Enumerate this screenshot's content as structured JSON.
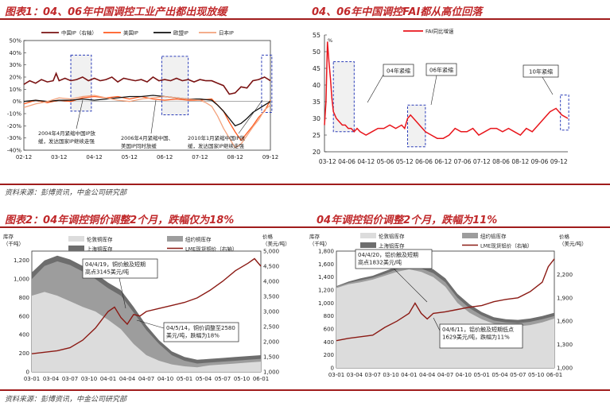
{
  "titles": {
    "fig1": "图表1：04、06年中国调控工业产出都出现放缓",
    "fig_fai": "04、06年中国调控FAI都从高位回落",
    "fig2": "图表2：04年调控铜价调整2个月，跌幅仅为18%",
    "fig_al": "04年调控铝价调整2个月，跌幅为11%"
  },
  "sources": {
    "top": "资料来源：彭博资讯，中金公司研究部",
    "bottom": "资料来源：彭博资讯，中金公司研究部"
  },
  "chart_data": [
    {
      "type": "line",
      "legend": [
        "中国IP（右轴）",
        "美国IP",
        "欧盟IP",
        "日本IP"
      ],
      "colors": [
        "#7a1313",
        "#ff5a1f",
        "#111111",
        "#f3a27c"
      ],
      "yticks": [
        "50%",
        "40%",
        "30%",
        "20%",
        "10%",
        "0%",
        "-10%",
        "-20%",
        "-30%",
        "-40%"
      ],
      "xticks": [
        "02-12",
        "03-12",
        "04-12",
        "05-12",
        "06-12",
        "07-12",
        "08-12",
        "09-12"
      ],
      "ylim": [
        -40,
        50
      ],
      "annotations": [
        "2004年4月紧缩中国IP放缓，发达国家IP继续走强",
        "2006年4月紧缩中国、美国IP同时放缓",
        "2010年1月紧缩中国IP放缓，发达国家IP继续走强"
      ],
      "series": [
        {
          "name": "中国IP（右轴）",
          "x": [
            0,
            2,
            4,
            6,
            8,
            10,
            11,
            12,
            14,
            16,
            18,
            20,
            22,
            24,
            26,
            28,
            30,
            32,
            34,
            36,
            38,
            40,
            42,
            44,
            46,
            48,
            50,
            52,
            54,
            56,
            58,
            60,
            62,
            64,
            66,
            68,
            70,
            72,
            74,
            76,
            78,
            80,
            82,
            84
          ],
          "values": [
            14,
            17,
            15,
            18,
            16,
            17,
            23,
            17,
            19,
            17,
            18,
            20,
            17,
            19,
            17,
            18,
            20,
            16,
            19,
            18,
            17,
            18,
            16,
            20,
            17,
            18,
            17,
            19,
            17,
            18,
            16,
            18,
            17,
            17,
            15,
            13,
            6,
            7,
            12,
            11,
            17,
            18,
            20,
            17
          ]
        },
        {
          "name": "美国IP",
          "x": [
            0,
            4,
            8,
            12,
            16,
            20,
            24,
            28,
            32,
            36,
            40,
            44,
            48,
            52,
            56,
            60,
            64,
            68,
            70,
            72,
            74,
            76,
            78,
            80,
            82,
            84
          ],
          "values": [
            -2,
            1,
            -1,
            1,
            0,
            3,
            4,
            3,
            4,
            2,
            4,
            2,
            1,
            2,
            1,
            1,
            2,
            -8,
            -17,
            -25,
            -32,
            -26,
            -20,
            -13,
            -8,
            1
          ]
        },
        {
          "name": "欧盟IP",
          "x": [
            0,
            4,
            8,
            12,
            16,
            20,
            24,
            28,
            32,
            36,
            40,
            44,
            48,
            52,
            56,
            60,
            64,
            66,
            68,
            70,
            72,
            74,
            76,
            78,
            80,
            82,
            84
          ],
          "values": [
            0,
            1,
            0,
            1,
            1,
            2,
            1,
            2,
            3,
            4,
            4,
            5,
            4,
            3,
            2,
            2,
            1,
            -3,
            -8,
            -14,
            -20,
            -18,
            -14,
            -9,
            -6,
            -3,
            0
          ]
        },
        {
          "name": "日本IP",
          "x": [
            0,
            4,
            8,
            12,
            16,
            20,
            24,
            28,
            32,
            36,
            40,
            44,
            48,
            52,
            56,
            60,
            62,
            64,
            66,
            68,
            70,
            72,
            74,
            76,
            78,
            80,
            82,
            84
          ],
          "values": [
            -5,
            -2,
            0,
            3,
            2,
            4,
            5,
            3,
            1,
            0,
            2,
            3,
            4,
            3,
            2,
            1,
            -1,
            -4,
            -12,
            -22,
            -30,
            -38,
            -35,
            -28,
            -21,
            -15,
            -7,
            -3
          ]
        }
      ]
    },
    {
      "type": "line",
      "legend": [
        "FAI同比增速"
      ],
      "unit": "%",
      "yticks": [
        "55",
        "50",
        "45",
        "40",
        "35",
        "30",
        "25",
        "20"
      ],
      "xticks": [
        "03-12",
        "04-06",
        "04-12",
        "05-06",
        "05-12",
        "06-06",
        "06-12",
        "07-06",
        "07-12",
        "08-06",
        "08-12",
        "09-06",
        "09-12"
      ],
      "ylim": [
        20,
        55
      ],
      "annotations": [
        "04年紧缩",
        "06年紧缩",
        "10年紧缩"
      ],
      "series": [
        {
          "name": "FAI同比增速",
          "x": [
            0,
            0.5,
            1,
            1.5,
            2,
            2.5,
            3,
            4,
            5,
            6,
            7,
            8,
            9,
            10,
            11,
            12,
            14,
            16,
            18,
            20,
            22,
            24,
            26,
            27,
            28,
            29,
            30,
            32,
            34,
            36,
            38,
            40,
            42,
            44,
            46,
            48,
            50,
            52,
            54,
            56,
            58,
            60,
            62,
            64,
            66,
            68,
            70,
            72,
            74,
            76,
            78,
            80,
            82
          ],
          "values": [
            28,
            35,
            53,
            47,
            42,
            36,
            32,
            30,
            29,
            28,
            28,
            27,
            27,
            26,
            27,
            26,
            25,
            26,
            27,
            27,
            28,
            27,
            28,
            27,
            30,
            31,
            30,
            28,
            26,
            25,
            24,
            24,
            25,
            27,
            26,
            26,
            27,
            25,
            26,
            27,
            27,
            26,
            27,
            26,
            25,
            27,
            26,
            28,
            30,
            32,
            33,
            31,
            30
          ]
        }
      ]
    },
    {
      "type": "area",
      "legend": [
        "伦敦铜库存",
        "纽约铜库存",
        "上海铜库存",
        "LME现货铜价（右轴）"
      ],
      "left_unit": "库存（千吨）",
      "right_unit": "价格（美元/吨）",
      "yticks_left": [
        "1,200",
        "1,000",
        "800",
        "600",
        "400",
        "200",
        "0"
      ],
      "yticks_right": [
        "5,000",
        "4,500",
        "4,000",
        "3,500",
        "3,000",
        "2,500",
        "2,000",
        "1,500",
        "1,000"
      ],
      "xticks": [
        "03-01",
        "03-04",
        "03-07",
        "03-10",
        "04-01",
        "04-04",
        "04-07",
        "04-10",
        "05-01",
        "05-04",
        "05-07",
        "05-10",
        "06-01"
      ],
      "ylim_left": [
        0,
        1300
      ],
      "ylim_right": [
        1000,
        5000
      ],
      "annotations": [
        "04/4/19，铜价触及短期高点3145美元/吨",
        "04/5/14，铜价调整至2580美元/吨，跌幅为18%"
      ],
      "series": [
        {
          "name": "伦敦铜库存",
          "x": [
            0,
            4,
            8,
            12,
            16,
            20,
            24,
            28,
            32,
            36,
            40,
            44,
            48,
            52,
            56,
            60,
            64,
            68,
            72
          ],
          "values": [
            820,
            860,
            820,
            760,
            700,
            650,
            560,
            460,
            300,
            180,
            120,
            80,
            60,
            50,
            70,
            80,
            90,
            100,
            110
          ]
        },
        {
          "name": "纽约铜库存",
          "x": [
            0,
            4,
            8,
            12,
            16,
            20,
            24,
            28,
            32,
            36,
            40,
            44,
            48,
            52,
            56,
            60,
            64,
            68,
            72
          ],
          "values": [
            1000,
            1140,
            1190,
            1150,
            1080,
            1000,
            900,
            820,
            640,
            450,
            300,
            180,
            120,
            90,
            100,
            110,
            120,
            130,
            140
          ]
        },
        {
          "name": "上海铜库存",
          "x": [
            0,
            4,
            8,
            12,
            16,
            20,
            24,
            28,
            32,
            36,
            40,
            44,
            48,
            52,
            56,
            60,
            64,
            68,
            72
          ],
          "values": [
            1070,
            1200,
            1250,
            1210,
            1140,
            1060,
            960,
            880,
            700,
            500,
            340,
            220,
            160,
            130,
            140,
            150,
            160,
            170,
            180
          ]
        },
        {
          "name": "LME现货铜价（右轴）",
          "x": [
            0,
            4,
            8,
            12,
            16,
            20,
            24,
            26,
            28,
            30,
            32,
            34,
            36,
            40,
            44,
            48,
            52,
            56,
            60,
            64,
            68,
            70,
            72
          ],
          "values": [
            1600,
            1650,
            1700,
            1800,
            2050,
            2450,
            3000,
            3145,
            2800,
            2580,
            2900,
            2850,
            3000,
            3100,
            3200,
            3300,
            3450,
            3700,
            4000,
            4350,
            4600,
            4750,
            4500
          ]
        }
      ]
    },
    {
      "type": "area",
      "legend": [
        "伦敦铝库存",
        "纽约铝库存",
        "上海铝库存",
        "LME现货铝价（右轴）"
      ],
      "left_unit": "库存（千吨）",
      "right_unit": "价格（美元/吨）",
      "yticks_left": [
        "1,800",
        "1,600",
        "1,400",
        "1,200",
        "1,000",
        "800",
        "600",
        "400",
        "200",
        "0"
      ],
      "yticks_right": [
        "2,200",
        "1,900",
        "1,600",
        "1,300",
        "1,000"
      ],
      "xticks": [
        "03-01",
        "03-04",
        "03-07",
        "03-10",
        "04-01",
        "04-04",
        "04-07",
        "04-10",
        "05-01",
        "05-04",
        "05-07",
        "05-10",
        "06-01"
      ],
      "ylim_left": [
        0,
        1800
      ],
      "ylim_right": [
        1000,
        2500
      ],
      "annotations": [
        "04/4/20，铝价触及短期高点1832美元/吨",
        "04/6/11，铝价调整至短期低点1629美元/吨，跌幅为11%"
      ],
      "series": [
        {
          "name": "伦敦铝库存",
          "x": [
            0,
            4,
            8,
            12,
            16,
            20,
            24,
            28,
            32,
            36,
            40,
            44,
            48,
            52,
            56,
            60,
            64,
            68,
            72
          ],
          "values": [
            1230,
            1290,
            1320,
            1360,
            1420,
            1480,
            1520,
            1480,
            1400,
            1250,
            1000,
            850,
            750,
            680,
            650,
            640,
            660,
            700,
            760
          ]
        },
        {
          "name": "纽约铝库存",
          "x": [
            0,
            4,
            8,
            12,
            16,
            20,
            24,
            28,
            32,
            36,
            40,
            44,
            48,
            52,
            56,
            60,
            64,
            68,
            72
          ],
          "values": [
            1250,
            1310,
            1350,
            1390,
            1450,
            1520,
            1560,
            1530,
            1460,
            1320,
            1080,
            920,
            810,
            730,
            700,
            690,
            710,
            750,
            800
          ]
        },
        {
          "name": "上海铝库存",
          "x": [
            0,
            4,
            8,
            12,
            16,
            20,
            24,
            28,
            32,
            36,
            40,
            44,
            48,
            52,
            56,
            60,
            64,
            68,
            72
          ],
          "values": [
            1260,
            1330,
            1380,
            1420,
            1490,
            1560,
            1600,
            1580,
            1520,
            1380,
            1140,
            980,
            860,
            780,
            750,
            740,
            760,
            800,
            850
          ]
        },
        {
          "name": "LME现货铝价（右轴）",
          "x": [
            0,
            4,
            8,
            12,
            16,
            20,
            24,
            26,
            28,
            30,
            32,
            36,
            40,
            44,
            48,
            52,
            56,
            60,
            64,
            68,
            70,
            72
          ],
          "values": [
            1350,
            1380,
            1400,
            1420,
            1520,
            1600,
            1700,
            1832,
            1700,
            1629,
            1700,
            1720,
            1750,
            1780,
            1800,
            1850,
            1880,
            1900,
            1980,
            2100,
            2300,
            2400
          ]
        }
      ]
    }
  ]
}
